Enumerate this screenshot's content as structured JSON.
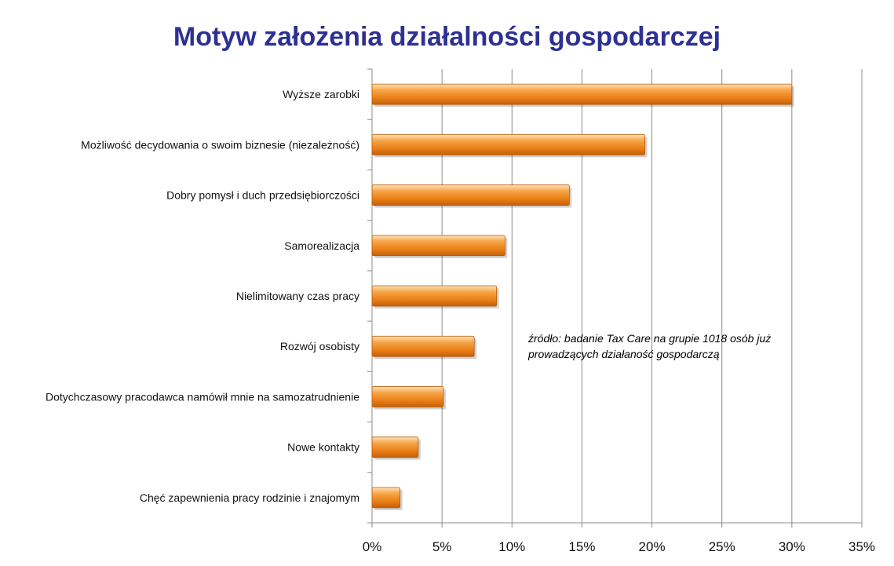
{
  "chart_data": {
    "type": "bar",
    "orientation": "horizontal",
    "title": "Motyw założenia działalności gospodarczej",
    "categories": [
      "Wyższe zarobki",
      "Możliwość decydowania o swoim biznesie (niezależność)",
      "Dobry pomysł i duch przedsiębiorczości",
      "Samorealizacja",
      "Nielimitowany czas pracy",
      "Rozwój osobisty",
      "Dotychczasowy pracodawca namówił mnie na samozatrudnienie",
      "Nowe kontakty",
      "Chęć zapewnienia pracy rodzinie i znajomym"
    ],
    "values": [
      30.0,
      19.5,
      14.1,
      9.5,
      8.9,
      7.3,
      5.1,
      3.3,
      2.0
    ],
    "x_ticks": [
      "0%",
      "5%",
      "10%",
      "15%",
      "20%",
      "25%",
      "30%",
      "35%"
    ],
    "xlim": [
      0,
      35
    ],
    "grid": true,
    "bar_color": "#f28c1c",
    "title_color": "#2e3192",
    "annotation": [
      "źródło: badanie Tax Care na grupie 1018 osób już",
      "prowadzących działaność gospodarczą"
    ]
  }
}
